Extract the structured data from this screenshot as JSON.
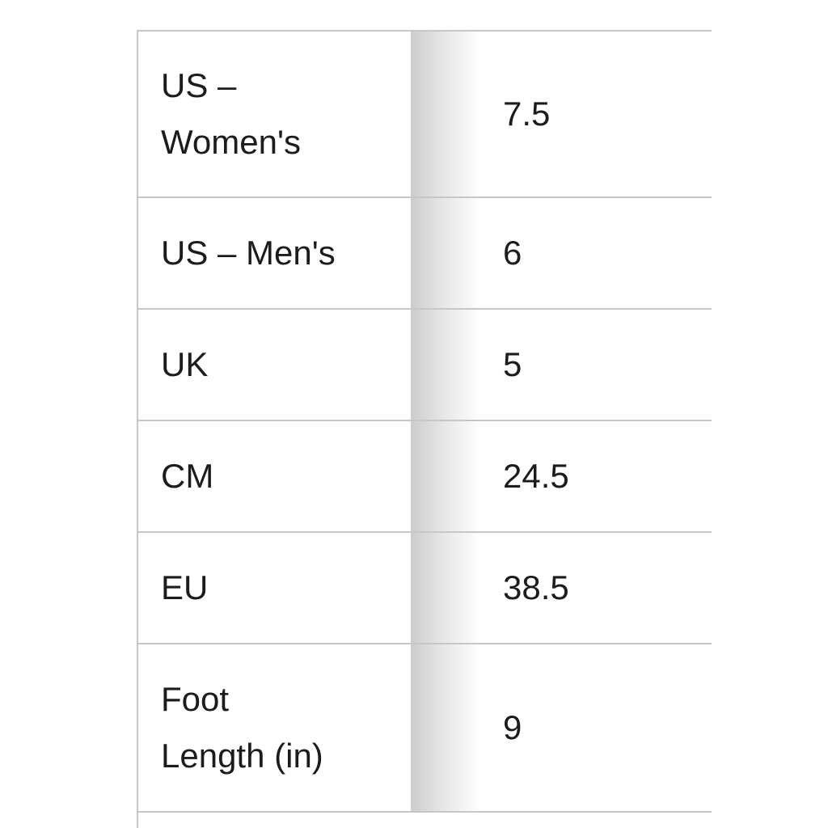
{
  "page": {
    "background_color": "#ffffff",
    "text_color": "#1c1c1e",
    "divider_color": "#c7c7c7"
  },
  "size_chart": {
    "kind": "shoe-size-conversion-table",
    "columns": [
      "size system",
      "size value"
    ],
    "rows": [
      {
        "label": "US –\nWomen's",
        "value": "7.5"
      },
      {
        "label": "US – Men's",
        "value": "6"
      },
      {
        "label": "UK",
        "value": "5"
      },
      {
        "label": "CM",
        "value": "24.5"
      },
      {
        "label": "EU",
        "value": "38.5"
      },
      {
        "label": "Foot\nLength (in)",
        "value": "9"
      }
    ]
  }
}
